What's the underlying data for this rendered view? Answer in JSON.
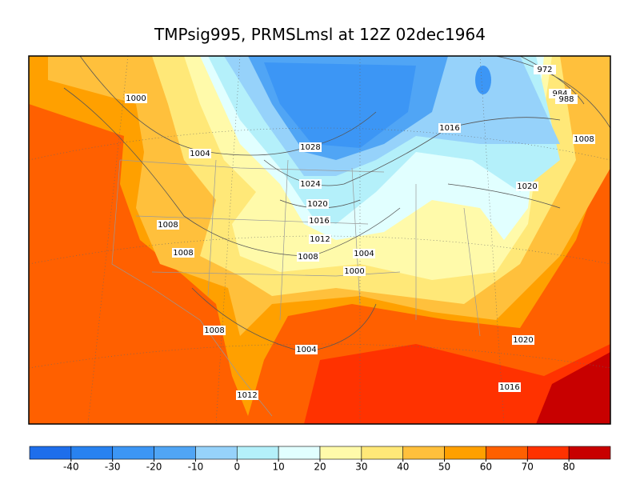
{
  "title": "TMPsig995, PRMSLmsl at 12Z  02dec1964",
  "isobar_labels": [
    1000,
    1004,
    1028,
    1024,
    1020,
    1016,
    1012,
    1008,
    1004,
    1000,
    1008,
    1008,
    1008,
    1004,
    1012,
    1016,
    1008,
    1020,
    972,
    984,
    988,
    1020,
    1016
  ],
  "colorbar": {
    "ticks": [
      -40,
      -30,
      -20,
      -10,
      0,
      10,
      20,
      30,
      40,
      50,
      60,
      70,
      80
    ],
    "colors": [
      "#1e6eeb",
      "#2882f0",
      "#3c96f5",
      "#50a5f5",
      "#96d2fa",
      "#b4f0fa",
      "#e1ffff",
      "#fffaaa",
      "#ffe878",
      "#ffc03c",
      "#ffa000",
      "#ff6000",
      "#ff3200",
      "#c80000"
    ]
  }
}
